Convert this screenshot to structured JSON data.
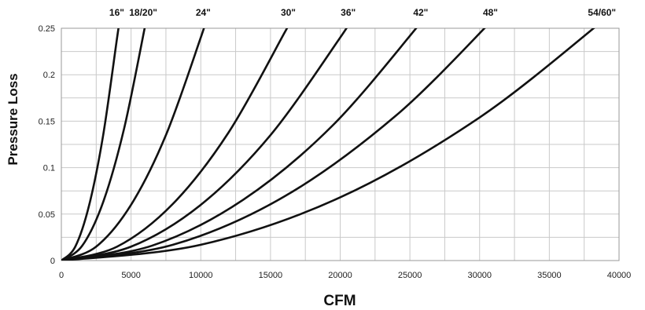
{
  "chart_data": {
    "type": "line",
    "xlabel": "CFM",
    "ylabel": "Pressure Loss",
    "xlim": [
      0,
      40000
    ],
    "ylim": [
      0,
      0.25
    ],
    "x_ticks": [
      0,
      5000,
      10000,
      15000,
      20000,
      25000,
      30000,
      35000,
      40000
    ],
    "y_ticks": [
      0,
      0.05,
      0.1,
      0.15,
      0.2,
      0.25
    ],
    "x_tick_labels": [
      "0",
      "5000",
      "10000",
      "15000",
      "20000",
      "25000",
      "30000",
      "35000",
      "40000"
    ],
    "y_tick_labels": [
      "0",
      "0.05",
      "0.1",
      "0.15",
      "0.2",
      "0.25"
    ],
    "grid": true,
    "series": [
      {
        "name": "16\"",
        "x": [
          0,
          1000,
          2000,
          3000,
          4000,
          4200
        ],
        "y": [
          0,
          0.015,
          0.06,
          0.135,
          0.24,
          0.26
        ]
      },
      {
        "name": "18/20\"",
        "x": [
          0,
          1500,
          3000,
          4500,
          6000,
          6100
        ],
        "y": [
          0,
          0.016,
          0.063,
          0.142,
          0.252,
          0.26
        ]
      },
      {
        "name": "24\"",
        "x": [
          0,
          2500,
          5000,
          7500,
          10000,
          10400
        ],
        "y": [
          0,
          0.015,
          0.06,
          0.135,
          0.24,
          0.26
        ]
      },
      {
        "name": "30\"",
        "x": [
          0,
          4000,
          8000,
          12000,
          16000,
          16500
        ],
        "y": [
          0,
          0.015,
          0.061,
          0.138,
          0.245,
          0.26
        ]
      },
      {
        "name": "36\"",
        "x": [
          0,
          5000,
          10000,
          15000,
          20000,
          20800
        ],
        "y": [
          0,
          0.015,
          0.06,
          0.135,
          0.24,
          0.26
        ]
      },
      {
        "name": "42\"",
        "x": [
          0,
          6500,
          13000,
          19500,
          26000
        ],
        "y": [
          0,
          0.016,
          0.065,
          0.146,
          0.26
        ]
      },
      {
        "name": "48\"",
        "x": [
          0,
          8000,
          16000,
          24000,
          31000
        ],
        "y": [
          0,
          0.017,
          0.069,
          0.156,
          0.26
        ]
      },
      {
        "name": "54/60\"",
        "x": [
          0,
          10000,
          20000,
          30000,
          39000
        ],
        "y": [
          0,
          0.017,
          0.068,
          0.154,
          0.26
        ]
      }
    ]
  }
}
